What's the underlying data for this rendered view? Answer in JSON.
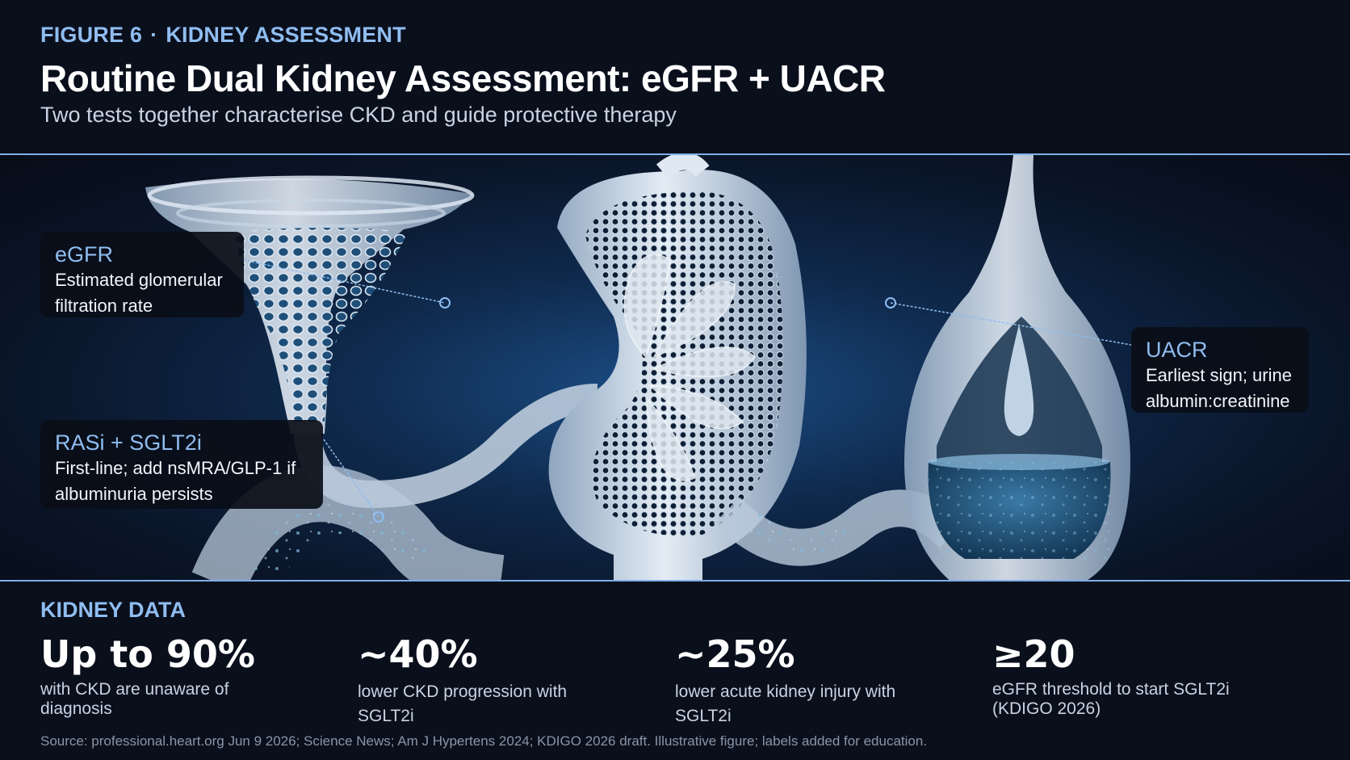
{
  "header": {
    "figure_label": "FIGURE 6",
    "separator": "·",
    "section": "KIDNEY ASSESSMENT",
    "title": "Routine Dual Kidney Assessment: eGFR + UACR",
    "subtitle": "Two tests together characterise CKD and guide protective therapy"
  },
  "callouts": {
    "egfr": {
      "title": "eGFR",
      "line1": "Estimated glomerular",
      "line2": "filtration rate"
    },
    "rasi": {
      "title": "RASi + SGLT2i",
      "line1": "First-line; add nsMRA/GLP-1 if",
      "line2": "albuminuria persists"
    },
    "uacr": {
      "title": "UACR",
      "line1": "Earliest sign; urine",
      "line2": "albumin:creatinine"
    }
  },
  "kidney_data": {
    "title": "KIDNEY DATA",
    "stats": [
      {
        "value": "Up to 90%",
        "label_1": "with CKD are unaware of",
        "label_2": "diagnosis"
      },
      {
        "value": "~40%",
        "label_1": "lower CKD progression with",
        "label_2": "SGLT2i"
      },
      {
        "value": "~25%",
        "label_1": "lower acute kidney injury with",
        "label_2": "SGLT2i"
      },
      {
        "value": "≥20",
        "label_1": "eGFR threshold to start SGLT2i",
        "label_2": "(KDIGO 2026)"
      }
    ]
  },
  "source": "Source: professional.heart.org Jun 9 2026; Science News; Am J Hypertens 2024; KDIGO 2026 draft. Illustrative figure; labels added for education.",
  "colors": {
    "background": "#0a0f1c",
    "accent": "#8fbdf0",
    "divider": "#7fb0e8",
    "glass": "#c8d6e6",
    "fluid": "#1e5a80"
  }
}
